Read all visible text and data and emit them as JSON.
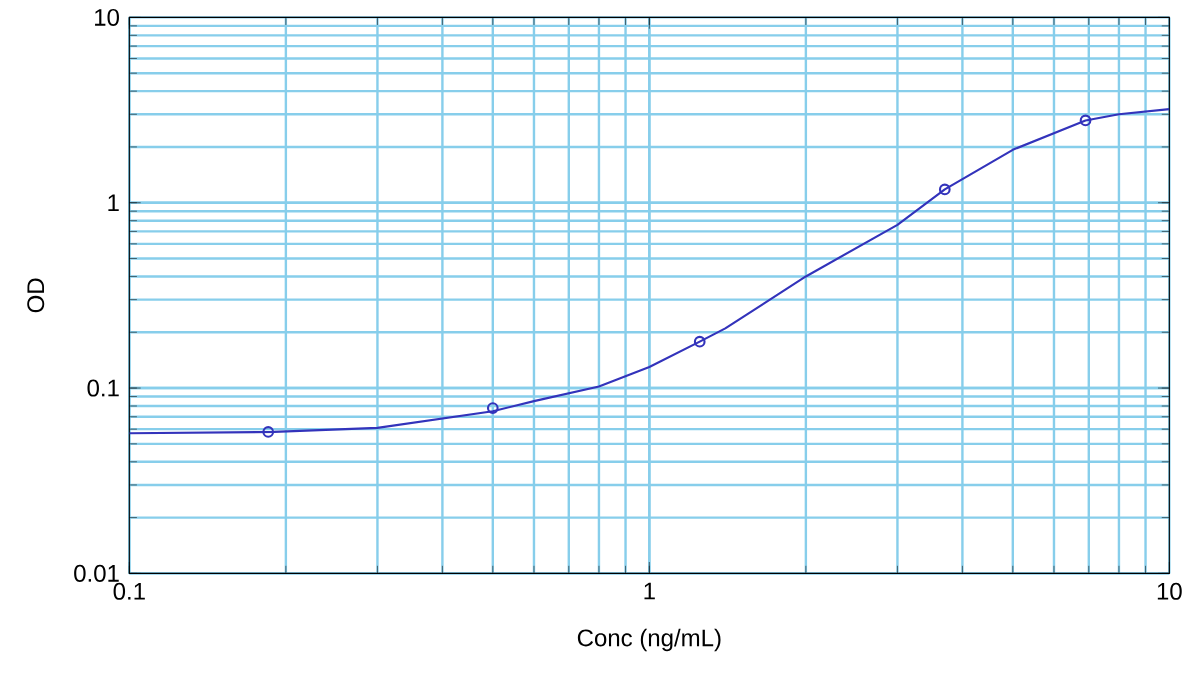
{
  "chart_data": {
    "type": "scatter",
    "xlabel": "Conc (ng/mL)",
    "ylabel": "OD",
    "log": "xy",
    "grid": true,
    "xlim": [
      0.1,
      10
    ],
    "ylim": [
      0.01,
      10
    ],
    "xticks": [
      0.1,
      1,
      10
    ],
    "yticks": [
      0.01,
      0.1,
      1,
      10
    ],
    "series": [
      {
        "type": "line",
        "color": "#3333bb",
        "marker": "none",
        "line_style": "solid",
        "x": [
          0.1,
          0.19,
          0.3,
          0.5,
          0.6,
          0.8,
          1,
          1.25,
          1.4,
          2,
          3,
          3.7,
          5,
          6.9,
          8,
          10
        ],
        "values": [
          0.057,
          0.058,
          0.061,
          0.075,
          0.085,
          0.102,
          0.13,
          0.178,
          0.21,
          0.4,
          0.76,
          1.18,
          1.93,
          2.78,
          3.0,
          3.2
        ]
      },
      {
        "color": "#3333bb",
        "marker": "circle",
        "x": [
          0.185,
          0.5,
          1.25,
          3.7,
          6.9
        ],
        "values": [
          0.058,
          0.078,
          0.178,
          1.18,
          2.78
        ]
      }
    ]
  }
}
